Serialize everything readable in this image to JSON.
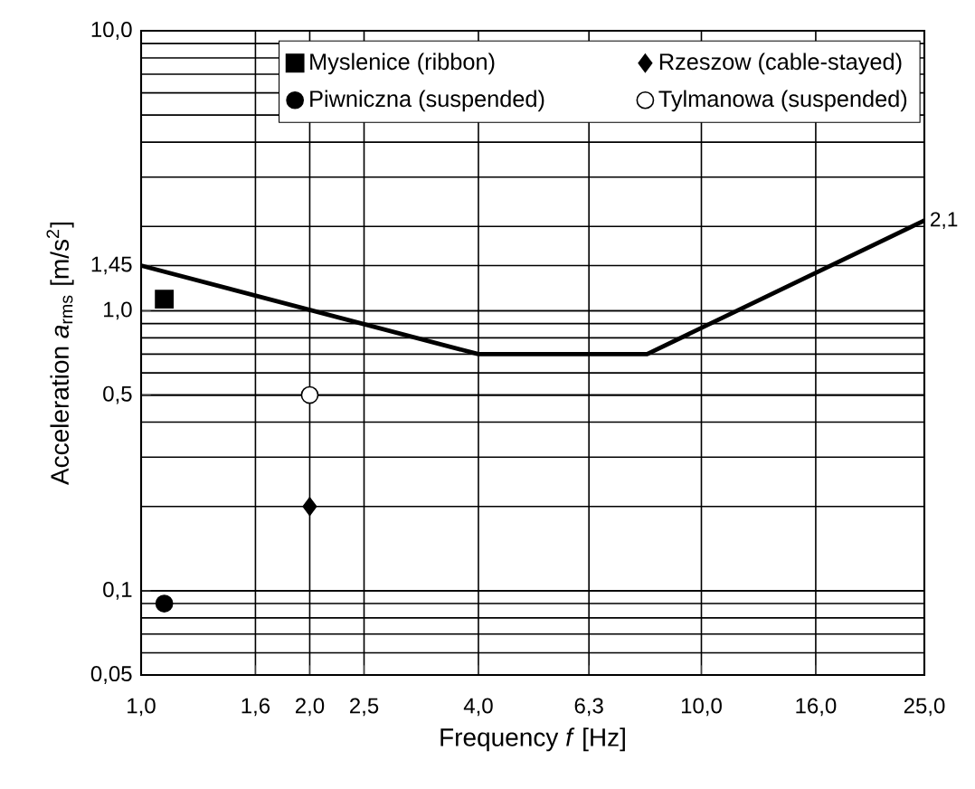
{
  "chart_data": {
    "type": "scatter",
    "xlabel": "Frequency *f* [Hz]",
    "ylabel": "Acceleration *a*$_{rms}$ [m/s$^{2}$]",
    "log": "xy",
    "grid": true,
    "legend": "top right",
    "xlim": [
      1,
      25
    ],
    "ylim": [
      0.05,
      10
    ],
    "xticks": [
      {
        "value": 1,
        "label": "1,0"
      },
      {
        "value": 1.6,
        "label": "1,6"
      },
      {
        "value": 2,
        "label": "2,0"
      },
      {
        "value": 2.5,
        "label": "2,5"
      },
      {
        "value": 4,
        "label": "4,0"
      },
      {
        "value": 6.3,
        "label": "6,3"
      },
      {
        "value": 10,
        "label": "10,0"
      },
      {
        "value": 16,
        "label": "16,0"
      },
      {
        "value": 25,
        "label": "25,0"
      }
    ],
    "yticks": [
      {
        "value": 0.05,
        "label": "0,05"
      },
      {
        "value": 0.1,
        "label": "0,1"
      },
      {
        "value": 0.5,
        "label": "0,5"
      },
      {
        "value": 1,
        "label": "1,0"
      },
      {
        "value": 1.45,
        "label": "1,45"
      },
      {
        "value": 10,
        "label": "10,0"
      }
    ],
    "annotations": [
      {
        "text": "2,1",
        "x": 25,
        "y": 2.1
      }
    ],
    "series": [
      {
        "type": "line",
        "color": "#000000",
        "marker": "none",
        "x": [
          1,
          4,
          8,
          25
        ],
        "values": [
          1.45,
          0.7,
          0.7,
          2.1
        ]
      },
      {
        "name": "Myslenice (ribbon)",
        "color": "#000000",
        "marker": "square",
        "x": [
          1.1
        ],
        "values": [
          1.1
        ]
      },
      {
        "name": "Rzeszow (cable-stayed)",
        "color": "#000000",
        "marker": "diamond",
        "x": [
          2.0
        ],
        "values": [
          0.2
        ]
      },
      {
        "name": "Piwniczna (suspended)",
        "color": "#000000",
        "marker": "circle",
        "x": [
          1.1
        ],
        "values": [
          0.09
        ]
      },
      {
        "name": "Tylmanowa (suspended)",
        "color": "#ffffff",
        "marker": "circle",
        "x": [
          2.0
        ],
        "values": [
          0.5
        ]
      }
    ]
  }
}
